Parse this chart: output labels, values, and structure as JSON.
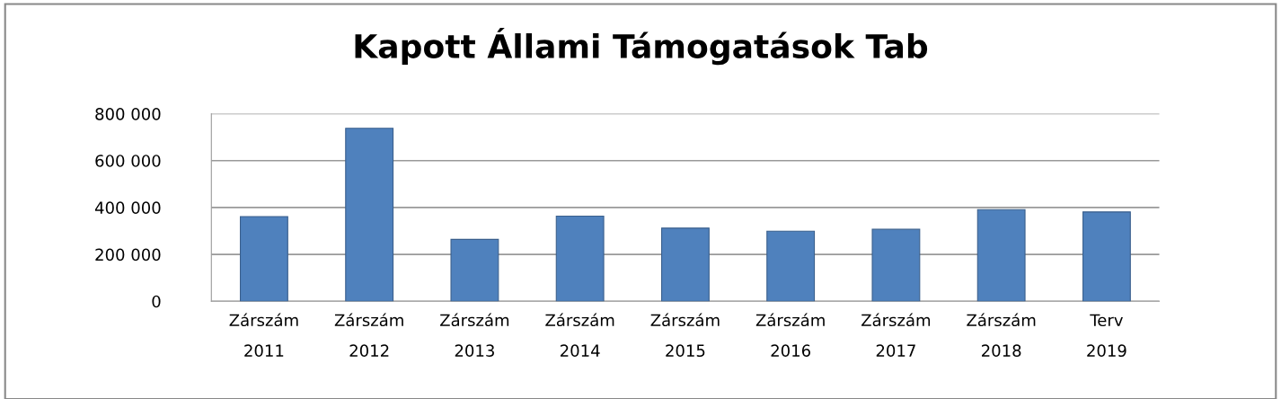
{
  "chart_data": {
    "type": "bar",
    "title": "Kapott Állami Támogatások Tab",
    "categories": [
      "Zárszám\n2011",
      "Zárszám\n2012",
      "Zárszám\n2013",
      "Zárszám\n2014",
      "Zárszám\n2015",
      "Zárszám\n2016",
      "Zárszám\n2017",
      "Zárszám\n2018",
      "Terv\n2019"
    ],
    "values": [
      361000,
      738000,
      264000,
      363000,
      312000,
      299000,
      307000,
      391000,
      381000
    ],
    "color": "#4f81bd",
    "ylim": [
      0,
      800000
    ],
    "yticks": [
      {
        "value": 0,
        "label": "0"
      },
      {
        "value": 200000,
        "label": "200 000"
      },
      {
        "value": 400000,
        "label": "400 000"
      },
      {
        "value": 600000,
        "label": "600 000"
      },
      {
        "value": 800000,
        "label": "800 000"
      }
    ],
    "grid": "y"
  }
}
